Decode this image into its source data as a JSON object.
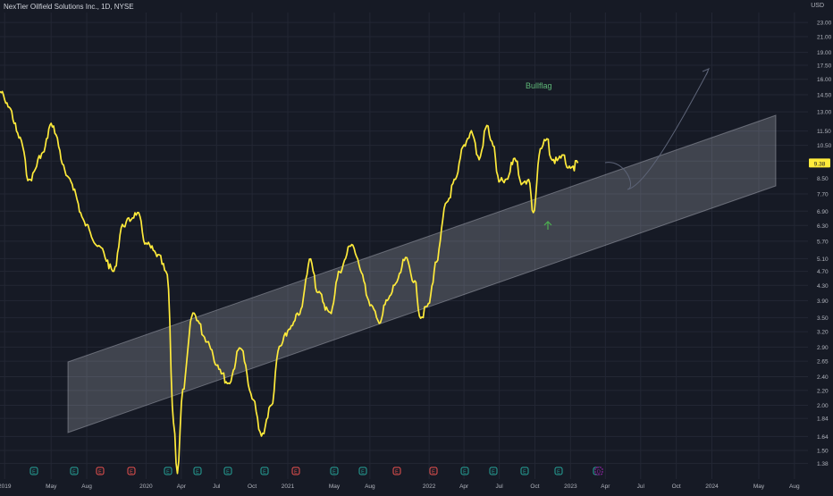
{
  "chart_data": {
    "type": "line",
    "title": "NexTier Oilfield Solutions Inc., 1D, NYSE",
    "currency": "USD",
    "y_scale": "log",
    "ylim": [
      1.25,
      24.5
    ],
    "y_ticks": [
      23.0,
      21.0,
      19.0,
      17.5,
      16.0,
      14.5,
      13.0,
      11.5,
      10.5,
      9.5,
      8.5,
      7.7,
      6.9,
      6.3,
      5.7,
      5.1,
      4.7,
      4.3,
      3.9,
      3.5,
      3.2,
      2.9,
      2.65,
      2.4,
      2.2,
      2.0,
      1.84,
      1.64,
      1.5,
      1.38
    ],
    "x_tick_labels": [
      "2019",
      "May",
      "Aug",
      "2020",
      "Apr",
      "Jul",
      "Oct",
      "2021",
      "May",
      "Aug",
      "2022",
      "Apr",
      "Jul",
      "Oct",
      "2023",
      "Apr",
      "Jul",
      "Oct",
      "2024",
      "May",
      "Aug"
    ],
    "last_price": "9.38",
    "annotation_text": "Bullflag",
    "series": [
      {
        "color": "#ffeb3b",
        "x": [
          "2018-12-20",
          "2019-01-10",
          "2019-02-10",
          "2019-03-05",
          "2019-04-10",
          "2019-05-01",
          "2019-06-15",
          "2019-08-01",
          "2019-09-01",
          "2019-10-10",
          "2019-11-01",
          "2019-12-10",
          "2020-01-01",
          "2020-02-01",
          "2020-02-25",
          "2020-03-12",
          "2020-03-22",
          "2020-04-05",
          "2020-05-01",
          "2020-06-10",
          "2020-07-01",
          "2020-08-01",
          "2020-09-01",
          "2020-10-01",
          "2020-10-25",
          "2020-11-20",
          "2020-12-10",
          "2021-01-10",
          "2021-02-01",
          "2021-03-01",
          "2021-03-20",
          "2021-04-20",
          "2021-05-15",
          "2021-06-15",
          "2021-07-10",
          "2021-08-01",
          "2021-08-25",
          "2021-09-15",
          "2021-10-10",
          "2021-11-01",
          "2021-11-25",
          "2021-12-10",
          "2021-12-30",
          "2022-01-20",
          "2022-02-15",
          "2022-03-10",
          "2022-04-01",
          "2022-04-20",
          "2022-05-10",
          "2022-05-30",
          "2022-06-15",
          "2022-06-30",
          "2022-07-20",
          "2022-08-10",
          "2022-08-30",
          "2022-09-15",
          "2022-09-27",
          "2022-10-15",
          "2022-11-01",
          "2022-11-15",
          "2022-12-10",
          "2023-01-01",
          "2023-01-20"
        ],
        "y": [
          14.8,
          13.5,
          11.0,
          8.4,
          10.0,
          12.0,
          8.5,
          6.3,
          5.5,
          4.7,
          6.3,
          6.8,
          5.6,
          5.2,
          4.6,
          1.8,
          1.3,
          2.2,
          3.6,
          3.0,
          2.6,
          2.3,
          2.9,
          2.1,
          1.65,
          2.0,
          2.9,
          3.3,
          3.6,
          5.1,
          4.1,
          3.6,
          4.7,
          5.6,
          4.7,
          3.8,
          3.4,
          3.9,
          4.4,
          5.1,
          4.4,
          3.5,
          3.8,
          5.0,
          7.3,
          8.4,
          10.5,
          11.5,
          9.6,
          11.9,
          10.5,
          8.3,
          8.4,
          9.7,
          8.2,
          8.5,
          6.8,
          10.2,
          10.9,
          9.5,
          9.8,
          9.0,
          9.38
        ]
      }
    ],
    "annotations": [
      {
        "type": "channel",
        "fill": "rgba(220,220,230,0.25)"
      },
      {
        "type": "projection-path",
        "color": "#5d6478"
      },
      {
        "type": "arrow-up",
        "color": "#4caf50"
      }
    ],
    "event_markers": {
      "labels": [
        "E",
        "E",
        "E",
        "E",
        "E",
        "E",
        "E",
        "E",
        "E",
        "E",
        "E",
        "E",
        "E",
        "E",
        "E",
        "E",
        "E",
        "E",
        "D"
      ],
      "colors": [
        "#26a69a",
        "#26a69a",
        "#ef5350",
        "#ef5350",
        "#26a69a",
        "#26a69a",
        "#26a69a",
        "#26a69a",
        "#ef5350",
        "#26a69a",
        "#26a69a",
        "#ef5350",
        "#ef5350",
        "#26a69a",
        "#26a69a",
        "#26a69a",
        "#26a69a",
        "#26a69a",
        "#9c27b0"
      ]
    },
    "grid": true
  }
}
